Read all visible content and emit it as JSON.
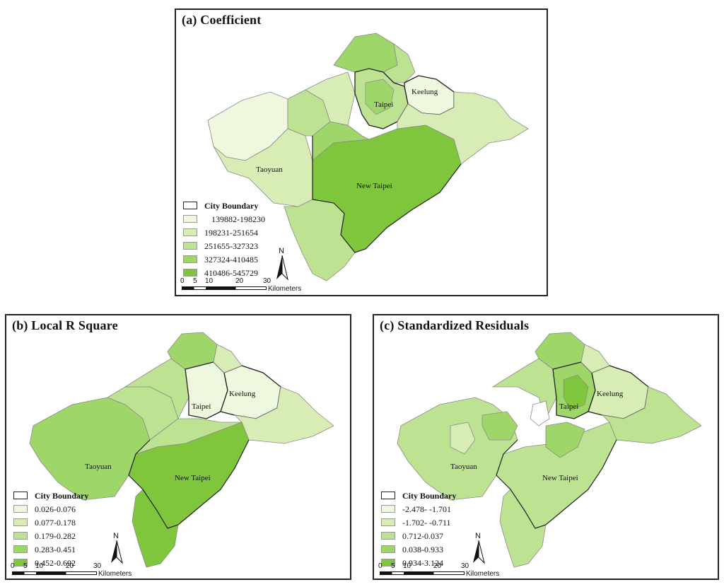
{
  "colors": {
    "c1": "#eef8de",
    "c2": "#d8edb6",
    "c3": "#bde392",
    "c4": "#9fd66a",
    "c5": "#80c63d",
    "boundary": "#222222",
    "district": "#8a8a8a"
  },
  "panels": [
    {
      "title": "(a) Coefficient",
      "legend_title": "City Boundary",
      "legend": [
        "139882-198230",
        "198231-251654",
        "251655-327323",
        "327324-410485",
        "410486-545729"
      ],
      "cities": {
        "taipei": "Taipei",
        "keelung": "Keelung",
        "taoyuan": "Taoyuan",
        "newtaipei": "New Taipei"
      },
      "north": "N",
      "scale_ticks": [
        "0",
        "5",
        "10",
        "20",
        "30"
      ],
      "scale_unit": "Kilometers"
    },
    {
      "title": "(b) Local R Square",
      "legend_title": "City Boundary",
      "legend": [
        "0.026-0.076",
        "0.077-0.178",
        "0.179-0.282",
        "0.283-0.451",
        "0.452-0.692"
      ],
      "cities": {
        "taipei": "Taipei",
        "keelung": "Keelung",
        "taoyuan": "Taoyuan",
        "newtaipei": "New Taipei"
      },
      "north": "N",
      "scale_ticks": [
        "0",
        "5",
        "10",
        "20",
        "30"
      ],
      "scale_unit": "Kilometers"
    },
    {
      "title": "(c) Standardized Residuals",
      "legend_title": "City Boundary",
      "legend": [
        "-2.478- -1.701",
        "-1.702- -0.711",
        "0.712-0.037",
        "0.038-0.933",
        "0.934-3.124"
      ],
      "cities": {
        "taipei": "Taipei",
        "keelung": "Keelung",
        "taoyuan": "Taoyuan",
        "newtaipei": "New Taipei"
      },
      "north": "N",
      "scale_ticks": [
        "0",
        "5",
        "10",
        "20",
        "30"
      ],
      "scale_unit": "Kilometers"
    }
  ]
}
